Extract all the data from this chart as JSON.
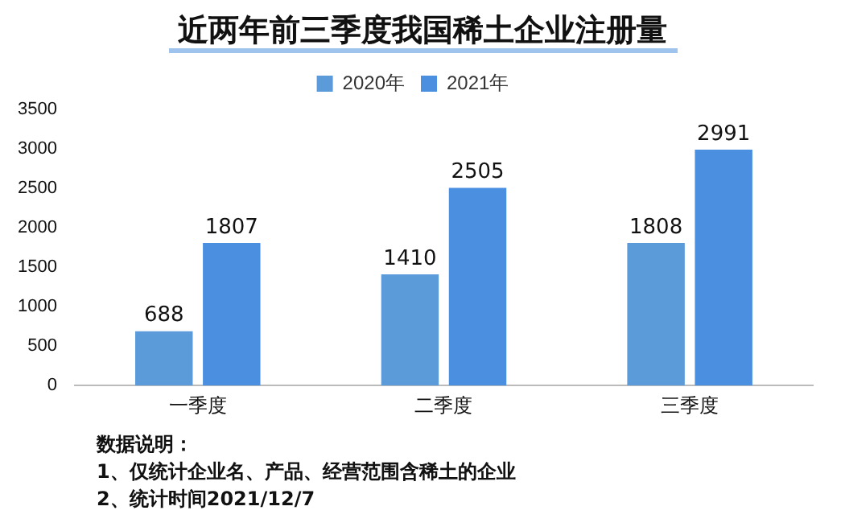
{
  "chart_data": {
    "type": "bar",
    "title": "近两年前三季度我国稀土企业注册量",
    "categories": [
      "一季度",
      "二季度",
      "三季度"
    ],
    "series": [
      {
        "name": "2020年",
        "color": "#5b9bd9",
        "values": [
          688,
          1410,
          1808
        ]
      },
      {
        "name": "2021年",
        "color": "#4a8fe0",
        "values": [
          1807,
          2505,
          2991
        ]
      }
    ],
    "ylim": [
      0,
      3500
    ],
    "yticks": [
      0,
      500,
      1000,
      1500,
      2000,
      2500,
      3000,
      3500
    ],
    "grid": false,
    "legend": "top",
    "data_labels": true,
    "annotations": [
      "数据说明：",
      "1、仅统计企业名、产品、经营范围含稀土的企业",
      "2、统计时间2021/12/7"
    ]
  }
}
